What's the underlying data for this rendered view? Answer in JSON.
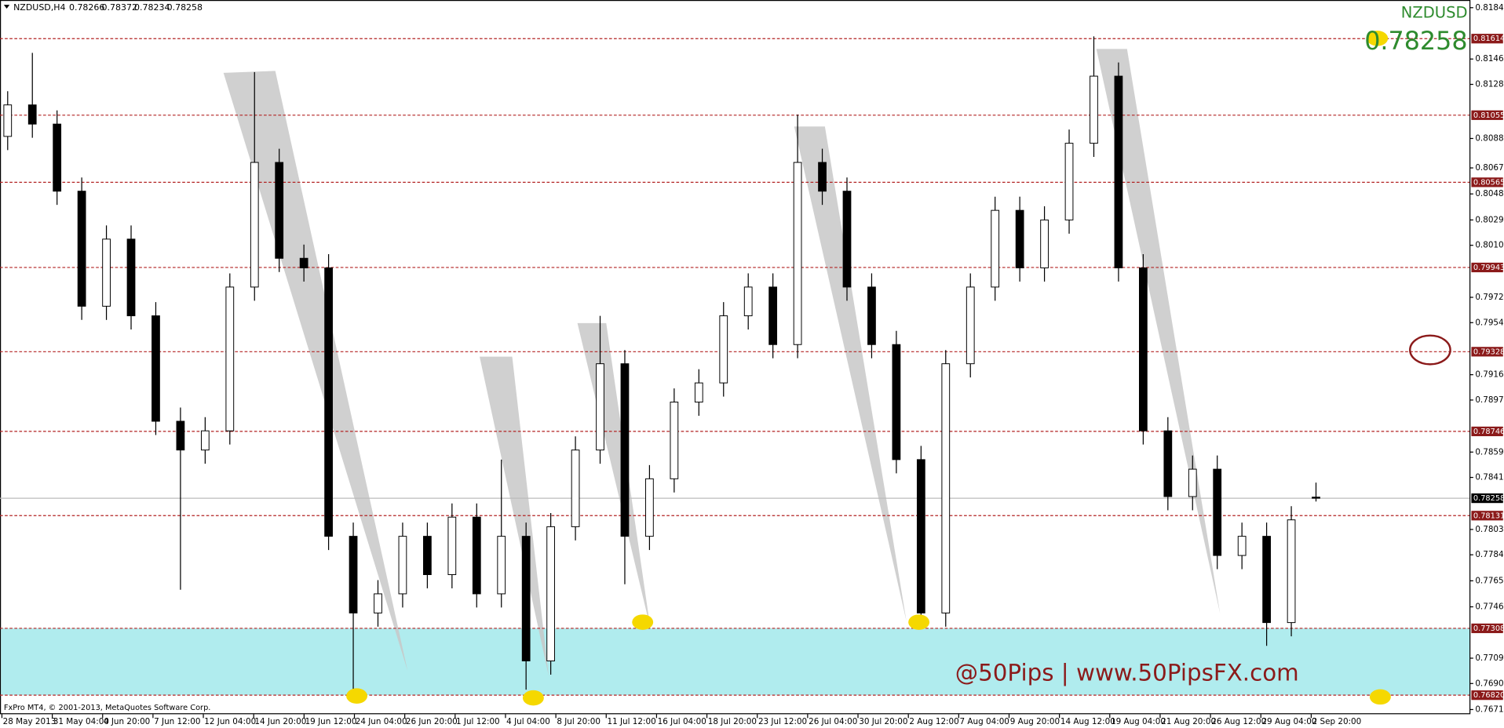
{
  "chart_data": {
    "type": "candlestick",
    "header": "NZDUSD,H4",
    "symbol": "NZDUSD",
    "watermark": "@50Pips | www.50PipsFX.com",
    "footer": "FxPro MT4, © 2001-2013, MetaQuotes Software Corp.",
    "categories": [
      "28 May 2013",
      "31 May 04:00",
      "4 Jun 20:00",
      "7 Jun 12:00",
      "12 Jun 04:00",
      "14 Jun 20:00",
      "19 Jun 12:00",
      "24 Jun 04:00",
      "26 Jun 20:00",
      "1 Jul 12:00",
      "4 Jul 04:00",
      "8 Jul 20:00",
      "11 Jul 12:00",
      "16 Jul 04:00",
      "18 Jul 20:00",
      "23 Jul 12:00",
      "26 Jul 04:00",
      "30 Jul 20:00",
      "2 Aug 12:00",
      "7 Aug 04:00",
      "9 Aug 20:00",
      "14 Aug 12:00",
      "19 Aug 04:00",
      "21 Aug 20:00",
      "26 Aug 12:00",
      "29 Aug 04:00",
      "2 Sep 20:00"
    ],
    "open": [
      0.809,
      0.8113,
      0.8099,
      0.805,
      0.7966,
      0.8015,
      0.7959,
      0.7882,
      0.7861,
      0.7875,
      0.798,
      0.8071,
      0.8001,
      0.7994,
      0.7798,
      0.7742,
      0.7756,
      0.7798,
      0.777,
      0.7812,
      0.7756,
      0.7798,
      0.7707,
      0.7805,
      0.7861,
      0.7924,
      0.7798,
      0.784,
      0.7896,
      0.791,
      0.7959,
      0.798,
      0.7938,
      0.8071,
      0.805,
      0.798,
      0.7938,
      0.7854,
      0.7742,
      0.7924,
      0.798,
      0.8036,
      0.7994,
      0.8029,
      0.8085,
      0.8134,
      0.7994,
      0.7875,
      0.7827,
      0.7847,
      0.7784,
      0.7798,
      0.7735,
      0.78266
    ],
    "high": [
      0.8123,
      0.8151,
      0.8109,
      0.806,
      0.8025,
      0.8025,
      0.7969,
      0.7892,
      0.7885,
      0.799,
      0.8137,
      0.8081,
      0.8011,
      0.8004,
      0.7808,
      0.7766,
      0.7808,
      0.7808,
      0.7822,
      0.7822,
      0.7854,
      0.7808,
      0.7815,
      0.7871,
      0.7959,
      0.7934,
      0.785,
      0.7906,
      0.792,
      0.7969,
      0.799,
      0.799,
      0.8106,
      0.8081,
      0.806,
      0.799,
      0.7948,
      0.7864,
      0.7934,
      0.799,
      0.8046,
      0.8046,
      0.8039,
      0.8095,
      0.8163,
      0.8144,
      0.8004,
      0.7885,
      0.7857,
      0.7857,
      0.7808,
      0.7808,
      0.782,
      0.78372
    ],
    "low": [
      0.808,
      0.8089,
      0.804,
      0.7956,
      0.7956,
      0.7949,
      0.7872,
      0.7759,
      0.7851,
      0.7865,
      0.797,
      0.7991,
      0.7984,
      0.7788,
      0.7686,
      0.7732,
      0.7746,
      0.776,
      0.776,
      0.7746,
      0.7746,
      0.7686,
      0.7697,
      0.7795,
      0.7851,
      0.7763,
      0.7788,
      0.783,
      0.7886,
      0.79,
      0.7949,
      0.7928,
      0.7928,
      0.804,
      0.797,
      0.7928,
      0.7844,
      0.7735,
      0.7732,
      0.7914,
      0.797,
      0.7984,
      0.7984,
      0.8019,
      0.8075,
      0.7984,
      0.7865,
      0.7817,
      0.7817,
      0.7774,
      0.7774,
      0.7718,
      0.7725,
      0.78234
    ],
    "close": [
      0.8113,
      0.8099,
      0.805,
      0.7966,
      0.8015,
      0.7959,
      0.7882,
      0.7861,
      0.7875,
      0.798,
      0.8071,
      0.8001,
      0.7994,
      0.7798,
      0.7742,
      0.7756,
      0.7798,
      0.777,
      0.7812,
      0.7756,
      0.7798,
      0.7707,
      0.7805,
      0.7861,
      0.7924,
      0.7798,
      0.784,
      0.7896,
      0.791,
      0.7959,
      0.798,
      0.7938,
      0.8071,
      0.805,
      0.798,
      0.7938,
      0.7854,
      0.7742,
      0.7924,
      0.798,
      0.8036,
      0.7994,
      0.8029,
      0.8085,
      0.8134,
      0.7994,
      0.7875,
      0.7827,
      0.7847,
      0.7784,
      0.7798,
      0.7735,
      0.781,
      0.78258
    ],
    "levels": [
      0.81614,
      0.81055,
      0.80565,
      0.79943,
      0.79328,
      0.78746,
      0.78131,
      0.77308,
      {
        "value": 0.7682,
        "label": "0.76820"
      }
    ],
    "level_color": "#b22222",
    "zone_color": "#b0ecee",
    "text_color": "#2e8b2e",
    "ylim": [
      0.76681,
      0.81896
    ],
    "yticks": [
      {
        "value": 0.8184,
        "label": "0.81840"
      },
      0.81465,
      {
        "value": 0.8128,
        "label": "0.81280"
      },
      0.80885,
      {
        "value": 0.8067,
        "label": "0.80670"
      },
      {
        "value": 0.8048,
        "label": "0.80480"
      },
      {
        "value": 0.8029,
        "label": "0.80290"
      },
      0.80105,
      0.79725,
      {
        "value": 0.7954,
        "label": "0.79540"
      },
      {
        "value": 0.7916,
        "label": "0.79160"
      },
      0.78975,
      0.78595,
      {
        "value": 0.7841,
        "label": "0.78410"
      },
      {
        "value": 0.7803,
        "label": "0.78030"
      },
      0.77845,
      0.77655,
      0.77465,
      {
        "value": 0.7709,
        "label": "0.77090"
      },
      0.76905,
      0.76715
    ]
  }
}
